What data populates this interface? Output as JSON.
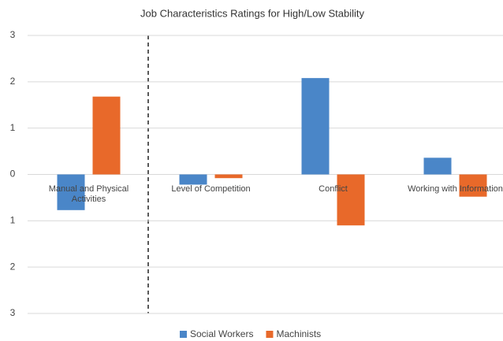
{
  "chart_data": {
    "type": "bar",
    "title": "Job Characteristics Ratings for High/Low Stability",
    "categories": [
      "Manual and Physical Activities",
      "Level of Competition",
      "Conflict",
      "Working with Information"
    ],
    "series": [
      {
        "name": "Social Workers",
        "color": "#4a86c8",
        "values": [
          -0.77,
          -0.22,
          2.08,
          0.36
        ]
      },
      {
        "name": "Machinists",
        "color": "#e8692a",
        "values": [
          1.68,
          -0.08,
          -1.1,
          -0.48
        ]
      }
    ],
    "ylim": [
      -3,
      3
    ],
    "yticks": [
      {
        "value": -3,
        "label": "3"
      },
      {
        "value": -2,
        "label": "2"
      },
      {
        "value": -1,
        "label": "1"
      },
      0,
      1,
      2,
      3
    ],
    "grid": true,
    "legend": "bottom"
  }
}
